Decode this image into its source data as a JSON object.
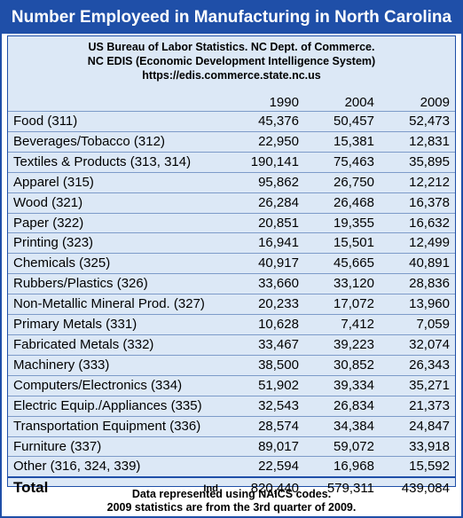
{
  "title": "Number Employeed in Manufacturing in North Carolina",
  "source": {
    "line1": "US Bureau of Labor Statistics. NC Dept. of Commerce.",
    "line2": "NC EDIS (Economic Development Intelligence System)",
    "line3": "https://edis.commerce.state.nc.us"
  },
  "columns": [
    "1990",
    "2004",
    "2009"
  ],
  "rows": [
    {
      "category": "Food (311)",
      "v1990": "45,376",
      "v2004": "50,457",
      "v2009": "52,473"
    },
    {
      "category": "Beverages/Tobacco (312)",
      "v1990": "22,950",
      "v2004": "15,381",
      "v2009": "12,831"
    },
    {
      "category": "Textiles & Products (313, 314)",
      "v1990": "190,141",
      "v2004": "75,463",
      "v2009": "35,895"
    },
    {
      "category": "Apparel (315)",
      "v1990": "95,862",
      "v2004": "26,750",
      "v2009": "12,212"
    },
    {
      "category": "Wood (321)",
      "v1990": "26,284",
      "v2004": "26,468",
      "v2009": "16,378"
    },
    {
      "category": "Paper (322)",
      "v1990": "20,851",
      "v2004": "19,355",
      "v2009": "16,632"
    },
    {
      "category": "Printing (323)",
      "v1990": "16,941",
      "v2004": "15,501",
      "v2009": "12,499"
    },
    {
      "category": "Chemicals (325)",
      "v1990": "40,917",
      "v2004": "45,665",
      "v2009": "40,891"
    },
    {
      "category": "Rubbers/Plastics (326)",
      "v1990": "33,660",
      "v2004": "33,120",
      "v2009": "28,836"
    },
    {
      "category": "Non-Metallic Mineral Prod. (327)",
      "v1990": "20,233",
      "v2004": "17,072",
      "v2009": "13,960"
    },
    {
      "category": "Primary Metals (331)",
      "v1990": "10,628",
      "v2004": "7,412",
      "v2009": "7,059"
    },
    {
      "category": "Fabricated Metals (332)",
      "v1990": "33,467",
      "v2004": "39,223",
      "v2009": "32,074"
    },
    {
      "category": "Machinery (333)",
      "v1990": "38,500",
      "v2004": "30,852",
      "v2009": "26,343"
    },
    {
      "category": "Computers/Electronics (334)",
      "v1990": "51,902",
      "v2004": "39,334",
      "v2009": "35,271"
    },
    {
      "category": "Electric Equip./Appliances (335)",
      "v1990": "32,543",
      "v2004": "26,834",
      "v2009": "21,373"
    },
    {
      "category": "Transportation Equipment (336)",
      "v1990": "28,574",
      "v2004": "34,384",
      "v2009": "24,847"
    },
    {
      "category": "Furniture (337)",
      "v1990": "89,017",
      "v2004": "59,072",
      "v2009": "33,918"
    },
    {
      "category": "Other (316, 324, 339)",
      "v1990": "22,594",
      "v2004": "16,968",
      "v2009": "15,592"
    }
  ],
  "total": {
    "label": "Total",
    "note": "Ind",
    "v1990": "820,440",
    "v2004": "579,311",
    "v2009": "439,084"
  },
  "notes": {
    "line1": "Data represented using NAICS codes.",
    "line2": "2009 statistics are from the 3rd quarter of 2009."
  },
  "colors": {
    "accent": "#1f4fa8",
    "panel": "#dce8f6"
  }
}
